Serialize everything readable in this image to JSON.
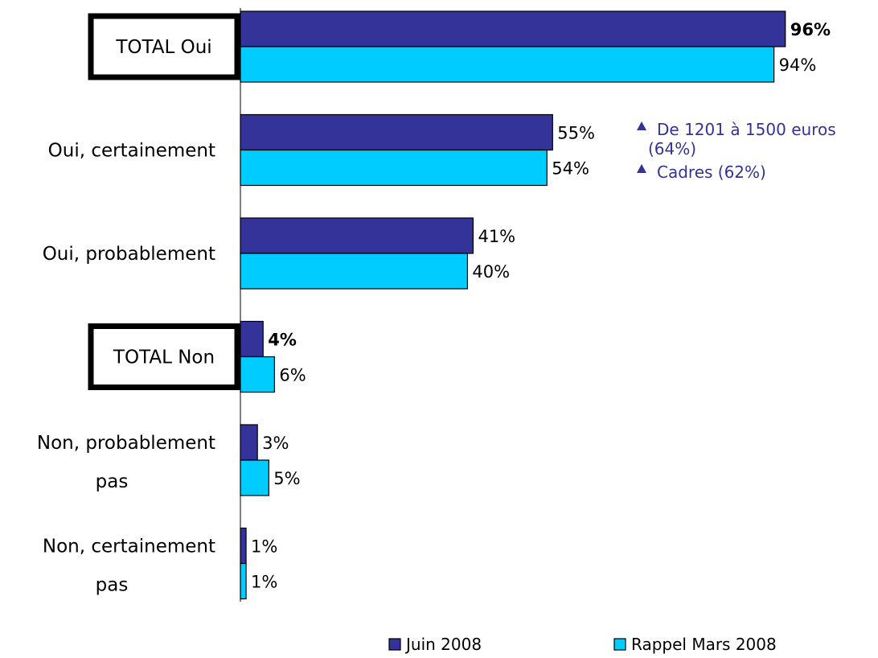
{
  "colors": {
    "series_juin": "#333399",
    "series_mars": "#00CCFF",
    "bar_stroke": "#000000",
    "note_text": "#333399"
  },
  "chart_data": {
    "type": "bar",
    "orientation": "horizontal",
    "categories": [
      {
        "lines": [
          "TOTAL Oui"
        ],
        "boxed": true,
        "bold_values": true
      },
      {
        "lines": [
          "Oui, certainement"
        ],
        "boxed": false,
        "bold_values": false
      },
      {
        "lines": [
          "Oui, probablement"
        ],
        "boxed": false,
        "bold_values": false
      },
      {
        "lines": [
          "TOTAL Non"
        ],
        "boxed": true,
        "bold_values": true
      },
      {
        "lines": [
          "Non, probablement",
          "pas"
        ],
        "boxed": false,
        "bold_values": false
      },
      {
        "lines": [
          "Non, certainement",
          "pas"
        ],
        "boxed": false,
        "bold_values": false
      }
    ],
    "series": [
      {
        "name": "Juin 2008",
        "color": "#333399",
        "values": [
          96,
          55,
          41,
          4,
          3,
          1
        ],
        "labels": [
          "96%",
          "55%",
          "41%",
          "4%",
          "3%",
          "1%"
        ]
      },
      {
        "name": "Rappel Mars 2008",
        "color": "#00CCFF",
        "values": [
          94,
          54,
          40,
          6,
          5,
          1
        ],
        "labels": [
          "94%",
          "54%",
          "40%",
          "6%",
          "5%",
          "1%"
        ]
      }
    ],
    "xlim": [
      0,
      100
    ],
    "grid": false,
    "legend": "bottom",
    "annotations": [
      {
        "category": "Oui, certainement",
        "marker": "triangle-up",
        "lines": [
          "De 1201 à 1500 euros",
          "(64%)"
        ]
      },
      {
        "category": "Oui, certainement",
        "marker": "triangle-up",
        "lines": [
          "Cadres (62%)"
        ]
      }
    ]
  }
}
